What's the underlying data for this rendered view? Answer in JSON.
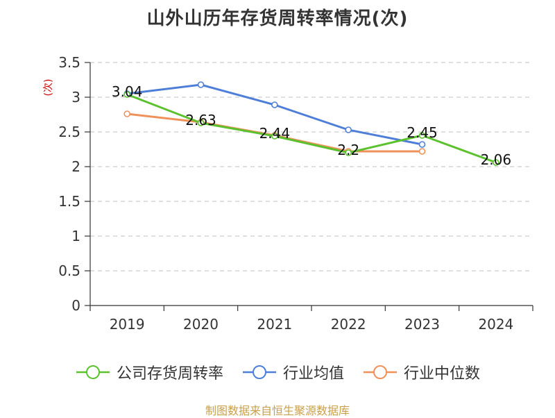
{
  "chart_data": {
    "type": "line",
    "title": "山外山历年存货周转率情况(次)",
    "ylabel": "(次)",
    "xlabel": "",
    "categories": [
      "2019",
      "2020",
      "2021",
      "2022",
      "2023",
      "2024"
    ],
    "ylim": [
      0,
      3.5
    ],
    "yticks": [
      "0",
      "0.5",
      "1",
      "1.5",
      "2",
      "2.5",
      "3",
      "3.5"
    ],
    "grid": true,
    "legend_position": "bottom",
    "series": [
      {
        "name": "公司存货周转率",
        "color": "#5cc12e",
        "values": [
          3.04,
          2.63,
          2.44,
          2.2,
          2.45,
          2.06
        ],
        "labels": [
          "3.04",
          "2.63",
          "2.44",
          "2.2",
          "2.45",
          "2.06"
        ]
      },
      {
        "name": "行业均值",
        "color": "#4e7fd8",
        "values": [
          3.05,
          3.18,
          2.89,
          2.53,
          2.32,
          null
        ]
      },
      {
        "name": "行业中位数",
        "color": "#f0915a",
        "values": [
          2.76,
          2.64,
          2.45,
          2.22,
          2.22,
          null
        ]
      }
    ]
  },
  "source": "制图数据来自恒生聚源数据库"
}
